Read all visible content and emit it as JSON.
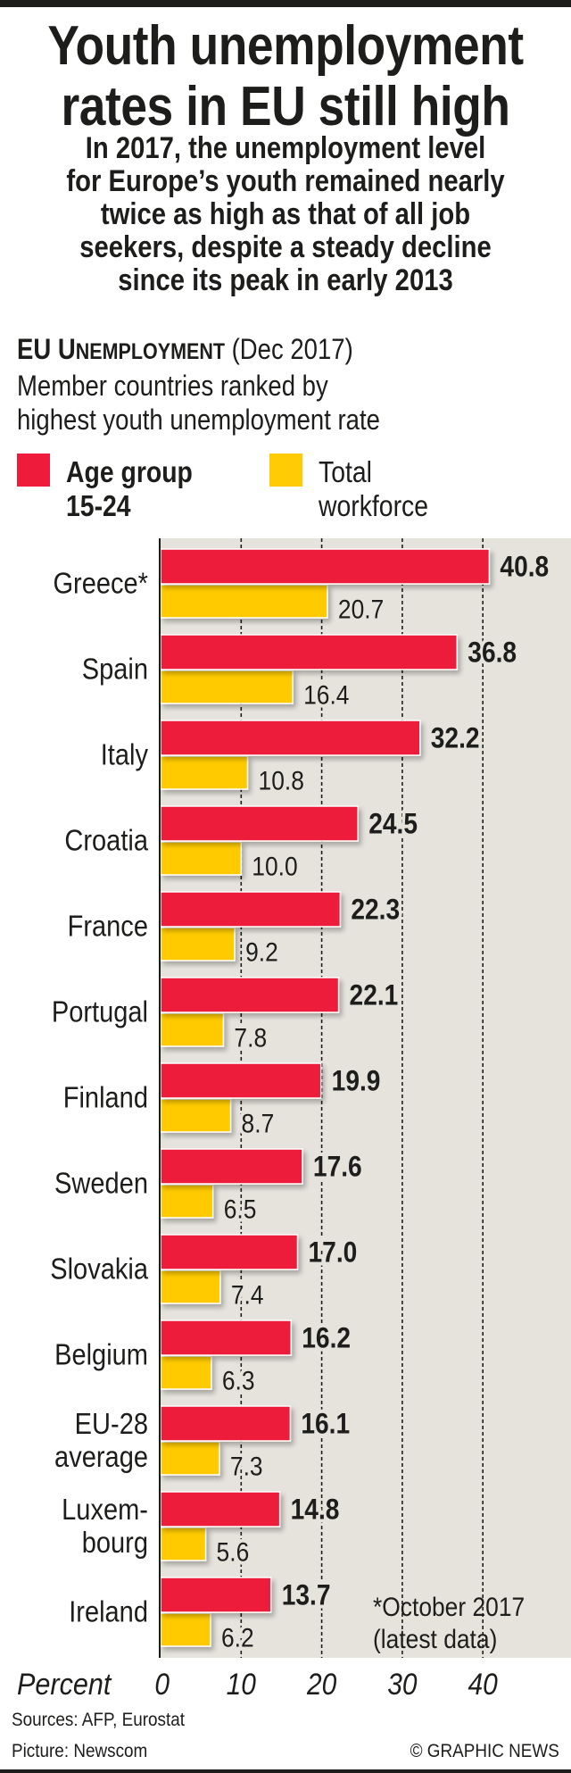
{
  "title": [
    "Youth unemployment",
    "rates in EU still high"
  ],
  "subtitle": [
    "In 2017, the unemployment level",
    "for Europe’s youth remained nearly",
    "twice as high as that of all job",
    "seekers, despite a steady decline",
    "since its peak in early 2013"
  ],
  "section": {
    "heading_first": "EU U",
    "heading_smallcaps": "NEMPLOYMENT",
    "heading_date": " (Dec 2017)",
    "description": [
      "Member countries ranked by",
      "highest youth unemployment rate"
    ]
  },
  "legend": {
    "youth": {
      "label": [
        "Age group",
        "15-24"
      ],
      "color": "#ee1c3a"
    },
    "total": {
      "label": [
        "Total",
        "workforce"
      ],
      "color": "#ffcb05"
    }
  },
  "footnote": [
    "*October 2017",
    "(latest data)"
  ],
  "footer": {
    "sources": "Sources: AFP, Eurostat",
    "picture": "Picture: Newscom",
    "credit": "© GRAPHIC NEWS"
  },
  "colors": {
    "panel": "#e6e3dd",
    "text": "#1d1d1b"
  },
  "chart_data": {
    "type": "bar",
    "orientation": "horizontal",
    "title": "EU Unemployment (Dec 2017)",
    "xlabel": "Percent",
    "ylabel": "",
    "xlim": [
      0,
      51
    ],
    "xticks": [
      0,
      10,
      20,
      30,
      40
    ],
    "xtick_labels": [
      "0",
      "10",
      "20",
      "30",
      "40"
    ],
    "grid": true,
    "legend_position": "top-left",
    "categories": [
      [
        "Greece*"
      ],
      [
        "Spain"
      ],
      [
        "Italy"
      ],
      [
        "Croatia"
      ],
      [
        "France"
      ],
      [
        "Portugal"
      ],
      [
        "Finland"
      ],
      [
        "Sweden"
      ],
      [
        "Slovakia"
      ],
      [
        "Belgium"
      ],
      [
        "EU-28",
        "average"
      ],
      [
        "Luxem-",
        "bourg"
      ],
      [
        "Ireland"
      ]
    ],
    "series": [
      {
        "name": "Age group 15-24",
        "color": "#ee1c3a",
        "values": [
          40.8,
          36.8,
          32.2,
          24.5,
          22.3,
          22.1,
          19.9,
          17.6,
          17.0,
          16.2,
          16.1,
          14.8,
          13.7
        ],
        "labels": [
          "40.8",
          "36.8",
          "32.2",
          "24.5",
          "22.3",
          "22.1",
          "19.9",
          "17.6",
          "17.0",
          "16.2",
          "16.1",
          "14.8",
          "13.7"
        ]
      },
      {
        "name": "Total workforce",
        "color": "#ffcb05",
        "values": [
          20.7,
          16.4,
          10.8,
          10.0,
          9.2,
          7.8,
          8.7,
          6.5,
          7.4,
          6.3,
          7.3,
          5.6,
          6.2
        ],
        "labels": [
          "20.7",
          "16.4",
          "10.8",
          "10.0",
          "9.2",
          "7.8",
          "8.7",
          "6.5",
          "7.4",
          "6.3",
          "7.3",
          "5.6",
          "6.2"
        ]
      }
    ]
  }
}
